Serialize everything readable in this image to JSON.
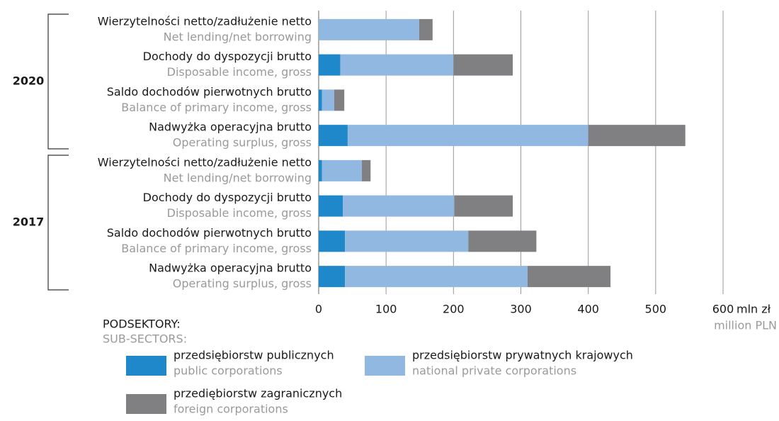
{
  "chart_data": {
    "type": "stacked-barh",
    "groups": [
      "2020",
      "2017"
    ],
    "categories": [
      "Wierzytelności netto/zadłużenie netto",
      "Dochody do dyspozycji brutto",
      "Saldo dochodów pierwotnych brutto",
      "Nadwyżka operacyjna brutto",
      "Wierzytelności netto/zadłużenie netto",
      "Dochody do dyspozycji brutto",
      "Saldo dochodów pierwotnych brutto",
      "Nadwyżka operacyjna brutto"
    ],
    "categories_en": [
      "Net lending/net borrowing",
      "Disposable income, gross",
      "Balance of primary income, gross",
      "Operating surplus, gross",
      "Net lending/net borrowing",
      "Disposable income, gross",
      "Balance of primary income, gross",
      "Operating surplus, gross"
    ],
    "series": [
      {
        "name": "przedsiębiorstw publicznych",
        "name_en": "public corporations",
        "color": "#1f88cb",
        "values": [
          0,
          32,
          5,
          43,
          5,
          36,
          39,
          39
        ]
      },
      {
        "name": "przedsiębiorstw prywatnych krajowych",
        "name_en": "national private corporations",
        "color": "#91b8e0",
        "values": [
          149,
          168,
          18,
          357,
          59,
          165,
          183,
          271
        ]
      },
      {
        "name": "przediębiorstw zagranicznych",
        "name_en": "foreign corporations",
        "color": "#808083",
        "values": [
          20,
          88,
          15,
          144,
          13,
          87,
          101,
          123
        ]
      }
    ],
    "xlim": [
      0,
      600
    ],
    "xticks": [
      0,
      100,
      200,
      300,
      400,
      500,
      600
    ],
    "x_label": "mln zł",
    "x_label_en": "million PLN",
    "legend_title": "PODSEKTORY:",
    "legend_title_en": "SUB-SECTORS:",
    "grid": true
  }
}
